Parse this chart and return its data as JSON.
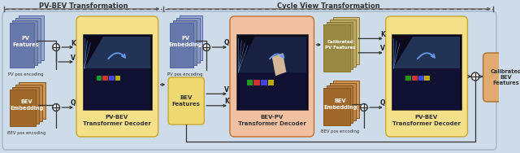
{
  "bg_color": "#cddce8",
  "box_yellow": "#f5e08a",
  "box_salmon": "#f0c0a0",
  "box_yellow_bev": "#f0d870",
  "pv_color_dark": "#7788bb",
  "pv_color_light": "#aabbdd",
  "bev_embed_dark": "#b06820",
  "bev_embed_mid": "#c88840",
  "bev_embed_light": "#d09850",
  "calibrated_pv_dark": "#aa9040",
  "calibrated_pv_mid": "#bbaa55",
  "calibrated_pv_light": "#ccbb66",
  "calibrated_bev_dark": "#c08040",
  "calibrated_bev_mid": "#d09050",
  "calibrated_bev_light": "#d8a060",
  "inner_dark": "#111122",
  "arrow_col": "#333333",
  "dashed_col": "#555555",
  "label_col": "#222222",
  "white": "#ffffff",
  "section1_label": "PV-BEV Transformation",
  "section2_label": "Cycle View Transformation",
  "td1_label": "PV-BEV\nTransformer Decoder",
  "td2_label": "BEV-PV\nTransformer Decoder",
  "td3_label": "PV-BEV\nTransformer Decoder",
  "bev_feat_label": "BEV\nFeatures",
  "pv_feat_label": "PV\nFeatures",
  "bev_emb_label": "BEV\nEmbedding",
  "pv_emb_label": "PV\nEmbedding",
  "cal_pv_label": "Calibrated\nPV Features",
  "cal_bev_label": "Calibrated\nBEV\nFeatures",
  "pv_pos_enc": "PV pos encoding",
  "bev_pos_enc": "BEV pos encoding"
}
